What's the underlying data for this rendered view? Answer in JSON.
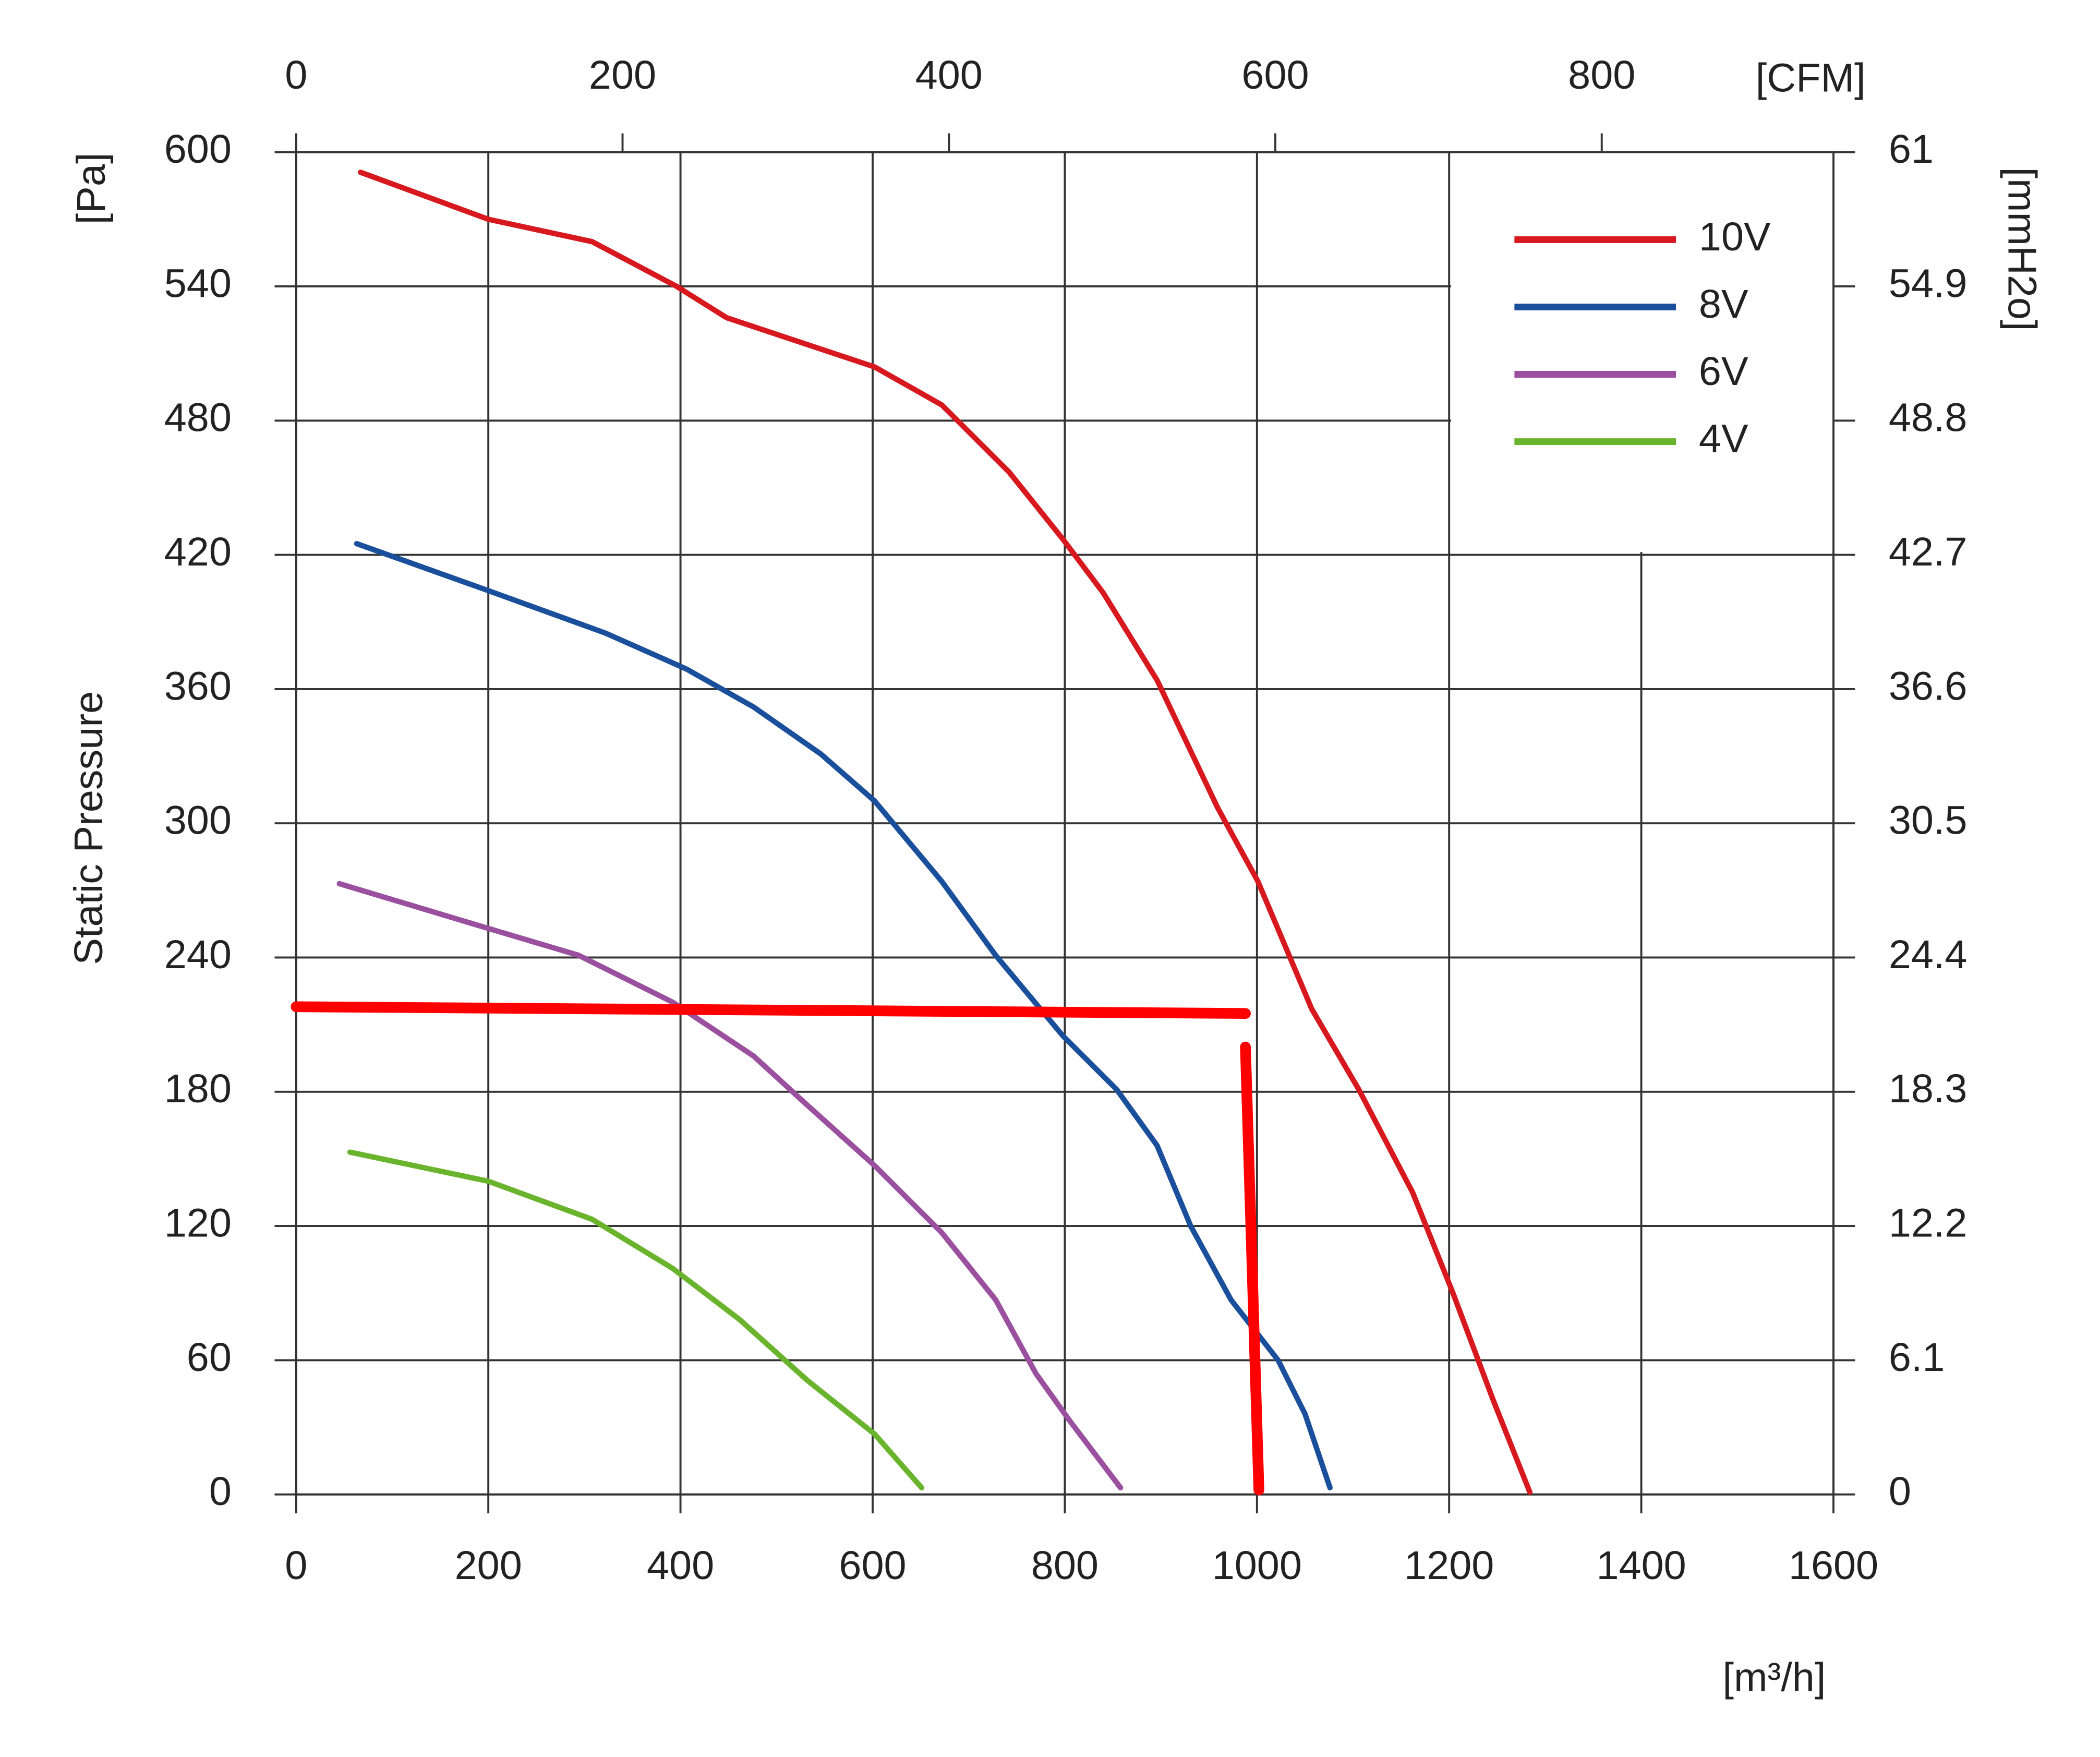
{
  "chart_data": {
    "type": "line",
    "x_label": "[m³/h]",
    "x2_label": "[CFM]",
    "y_label_unit": "[Pa]",
    "y_label": "Static Pressure",
    "y2_label": "[mmH2o]",
    "xlim": [
      0,
      1600
    ],
    "xticks": [
      0,
      200,
      400,
      600,
      800,
      1000,
      1200,
      1400,
      1600
    ],
    "x2lim": [
      0,
      942
    ],
    "x2ticks": [
      0,
      200,
      400,
      600,
      800
    ],
    "ylim": [
      0,
      600
    ],
    "yticks": [
      0,
      60,
      120,
      180,
      240,
      300,
      360,
      420,
      480,
      540,
      600
    ],
    "y2lim": [
      0,
      61
    ],
    "y2ticks": [
      0,
      6.1,
      12.2,
      18.3,
      24.4,
      30.5,
      36.6,
      42.7,
      48.8,
      54.9,
      61
    ],
    "grid": true,
    "legend": "upper right",
    "series": [
      {
        "name": "10V",
        "color": "#d7191f",
        "x": [
          67,
          200,
          308,
          396,
          448,
          532,
          602,
          672,
          742,
          798,
          840,
          896,
          959,
          1001,
          1057,
          1106,
          1162,
          1204,
          1246,
          1284
        ],
        "values": [
          591,
          570,
          560,
          540,
          526,
          514,
          504,
          487,
          457,
          427,
          403,
          364,
          307,
          274,
          217,
          181,
          135,
          90,
          42,
          1
        ]
      },
      {
        "name": "8V",
        "color": "#1a4f9c",
        "x": [
          63,
          200,
          322,
          406,
          476,
          546,
          602,
          672,
          728,
          798,
          854,
          896,
          931,
          973,
          1022,
          1050,
          1076
        ],
        "values": [
          425,
          404,
          385,
          369,
          352,
          331,
          310,
          274,
          241,
          205,
          181,
          156,
          120,
          87,
          60,
          36,
          3
        ]
      },
      {
        "name": "6V",
        "color": "#9b4f9f",
        "x": [
          45,
          200,
          294,
          392,
          476,
          532,
          602,
          672,
          728,
          770,
          805,
          858
        ],
        "values": [
          273,
          253,
          241,
          220,
          196,
          174,
          147,
          117,
          87,
          54,
          33,
          3
        ]
      },
      {
        "name": "4V",
        "color": "#6ab42d",
        "x": [
          56,
          200,
          308,
          392,
          462,
          532,
          602,
          651
        ],
        "values": [
          153,
          140,
          123,
          101,
          78,
          51,
          27,
          3
        ]
      }
    ],
    "annotation_lines": [
      {
        "color": "#ff0000",
        "x": [
          0,
          988
        ],
        "values": [
          218,
          215
        ]
      },
      {
        "color": "#ff0000",
        "x": [
          988,
          1002
        ],
        "values": [
          200,
          2
        ]
      }
    ]
  }
}
